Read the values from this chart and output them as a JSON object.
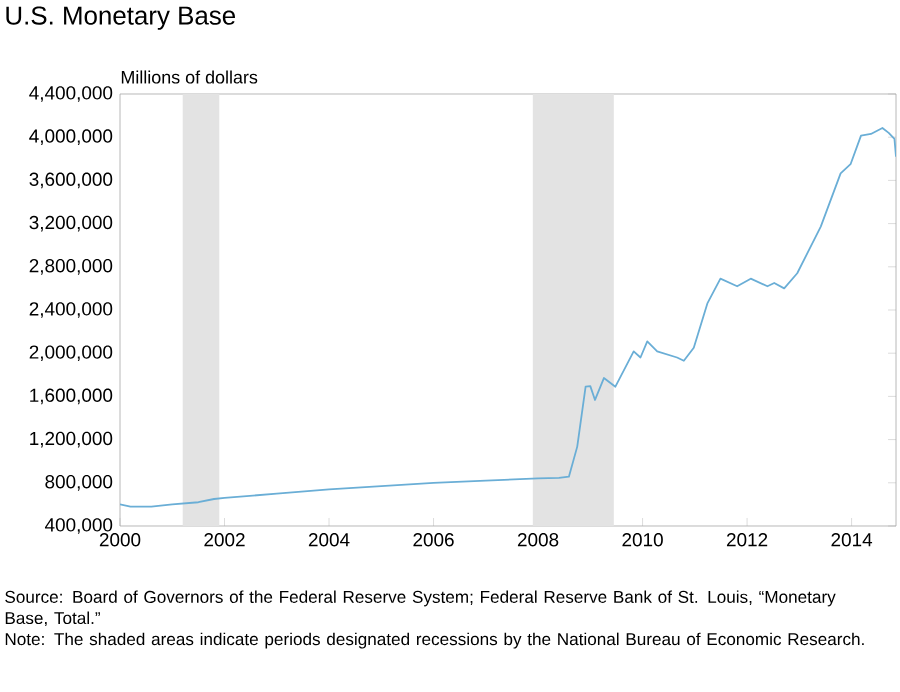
{
  "chart_data": {
    "type": "line",
    "title": "U.S. Monetary Base",
    "ylabel": "Millions of dollars",
    "color": "#6aaed6",
    "x": [
      2000.0,
      2000.2,
      2000.6,
      2001.0,
      2001.5,
      2001.8,
      2002.0,
      2003.0,
      2004.0,
      2005.0,
      2006.0,
      2007.0,
      2008.0,
      2008.4,
      2008.59,
      2008.75,
      2008.91,
      2009.0,
      2009.09,
      2009.26,
      2009.48,
      2009.83,
      2009.96,
      2010.09,
      2010.28,
      2010.66,
      2010.79,
      2010.98,
      2011.24,
      2011.49,
      2011.81,
      2012.07,
      2012.39,
      2012.52,
      2012.71,
      2012.96,
      2013.41,
      2013.79,
      2013.98,
      2014.18,
      2014.37,
      2014.59,
      2014.71,
      2014.82,
      2014.85
    ],
    "values": [
      600000,
      580000,
      580000,
      600000,
      620000,
      650000,
      660000,
      700000,
      740000,
      770000,
      800000,
      820000,
      840000,
      845000,
      857000,
      1135000,
      1690000,
      1695000,
      1567000,
      1770000,
      1690000,
      2017000,
      1960000,
      2109000,
      2017000,
      1960000,
      1930000,
      2050000,
      2461000,
      2690000,
      2620000,
      2690000,
      2620000,
      2650000,
      2600000,
      2740000,
      3172000,
      3665000,
      3750000,
      4015000,
      4030000,
      4085000,
      4040000,
      3985000,
      3820000
    ],
    "xlim": [
      2000,
      2014.85
    ],
    "ylim": [
      400000,
      4400000
    ],
    "xticks": [
      2000,
      2002,
      2004,
      2006,
      2008,
      2010,
      2012,
      2014
    ],
    "yticks": [
      {
        "value": 400000,
        "label": "400,000"
      },
      {
        "value": 800000,
        "label": "800,000"
      },
      {
        "value": 1200000,
        "label": "1,200,000"
      },
      {
        "value": 1600000,
        "label": "1,600,000"
      },
      {
        "value": 2000000,
        "label": "2,000,000"
      },
      {
        "value": 2400000,
        "label": "2,400,000"
      },
      {
        "value": 2800000,
        "label": "2,800,000"
      },
      {
        "value": 3200000,
        "label": "3,200,000"
      },
      {
        "value": 3600000,
        "label": "3,600,000"
      },
      {
        "value": 4000000,
        "label": "4,000,000"
      },
      {
        "value": 4400000,
        "label": "4,400,000"
      }
    ],
    "bands": [
      {
        "axis": "x",
        "from": 2001.2,
        "to": 2001.9,
        "color": "#e3e3e3"
      },
      {
        "axis": "x",
        "from": 2007.9,
        "to": 2009.45,
        "color": "#e3e3e3"
      }
    ],
    "annotations": [
      "Source: Board of Governors of the Federal Reserve System; Federal Reserve Bank of St. Louis, “Monetary Base, Total.”",
      "Note: The shaded areas indicate periods designated recessions by the National Bureau of Economic Research."
    ]
  }
}
